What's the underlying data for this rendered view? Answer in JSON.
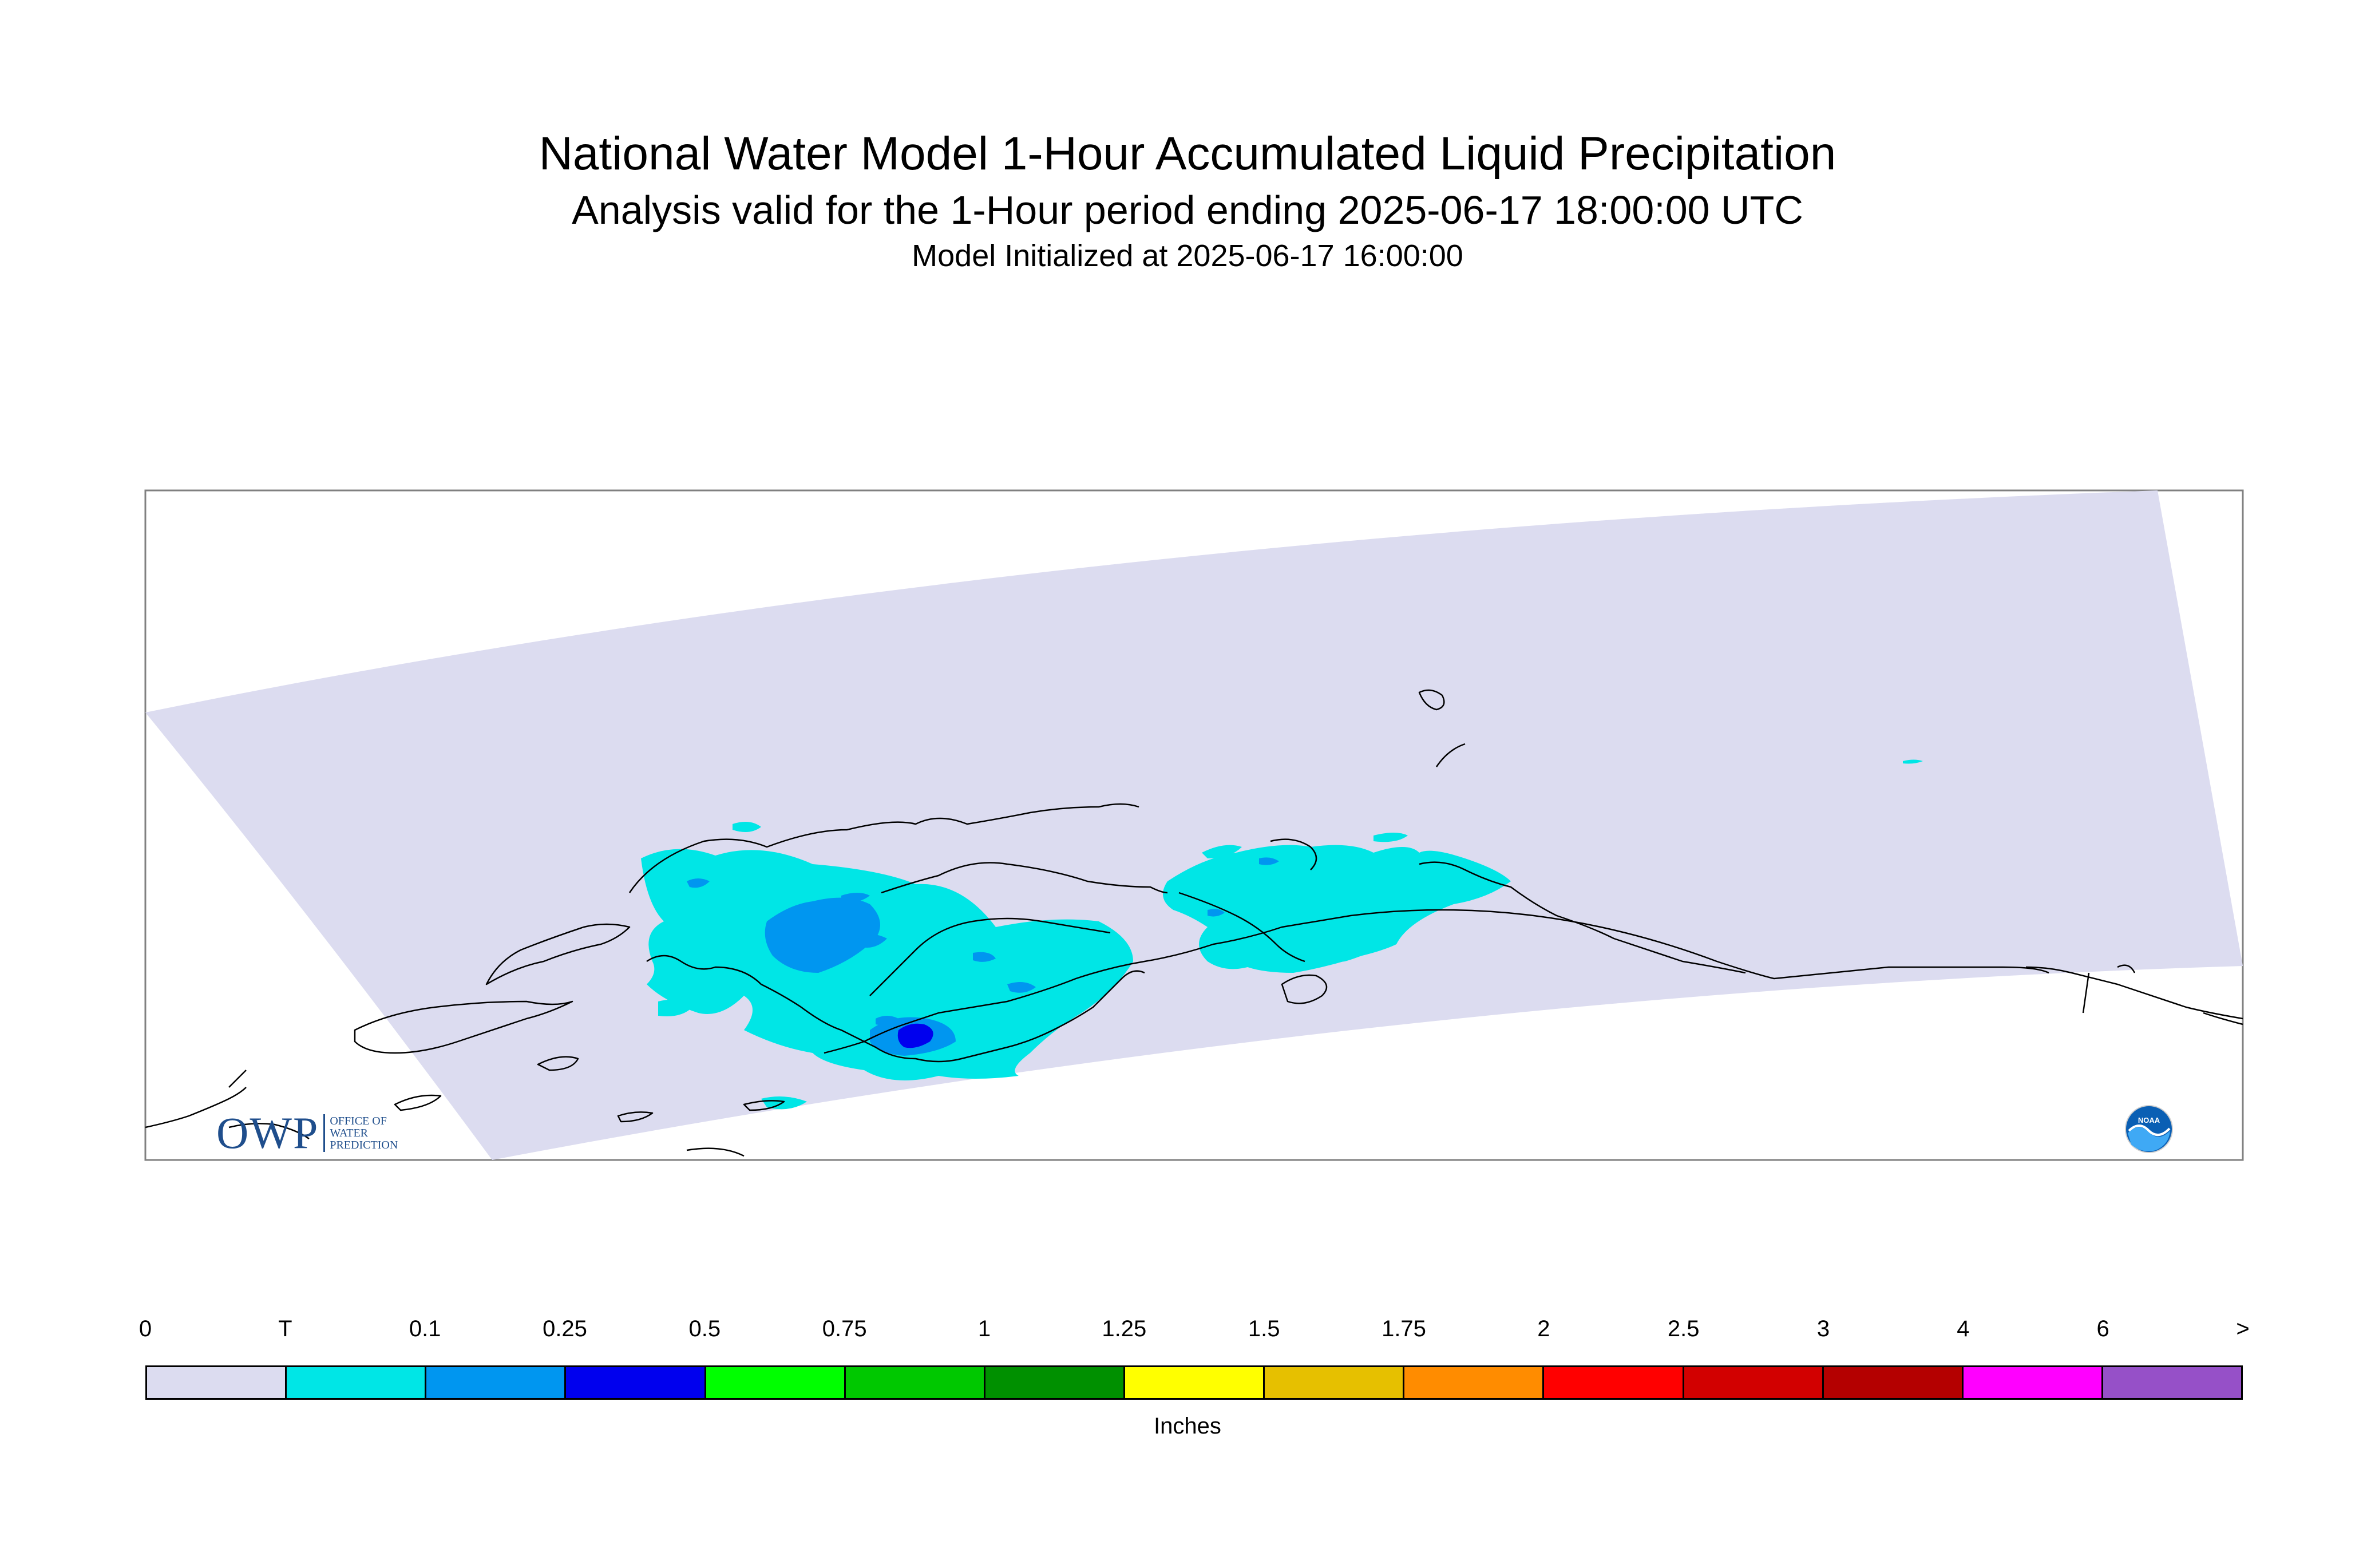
{
  "title": "National Water Model 1-Hour Accumulated Liquid Precipitation",
  "subtitle": "Analysis valid for the 1-Hour period ending 2025-06-17 18:00:00 UTC",
  "init_line": "Model Initialized at 2025-06-17 16:00:00",
  "legend": {
    "units": "Inches",
    "labels": [
      "0",
      "T",
      "0.1",
      "0.25",
      "0.5",
      "0.75",
      "1",
      "1.25",
      "1.5",
      "1.75",
      "2",
      "2.5",
      "3",
      "4",
      "6",
      ">"
    ],
    "colors": [
      "#dcdcf0",
      "#00e6e6",
      "#0096f0",
      "#0000ee",
      "#00ff00",
      "#00c800",
      "#009000",
      "#ffff00",
      "#e6c000",
      "#ff8c00",
      "#ff0000",
      "#d20000",
      "#b40000",
      "#ff00ff",
      "#9650c8"
    ]
  },
  "map": {
    "domain_color": "#dcdcf0",
    "coast_color": "#000000",
    "precip_colors": {
      "trace": "#00e6e6",
      "light": "#0096f0",
      "moderate": "#0000ee"
    }
  },
  "logos": {
    "owp": {
      "letters": "OWP",
      "lines": [
        "OFFICE OF",
        "WATER",
        "PREDICTION"
      ]
    },
    "noaa": {
      "text": "NOAA"
    }
  }
}
